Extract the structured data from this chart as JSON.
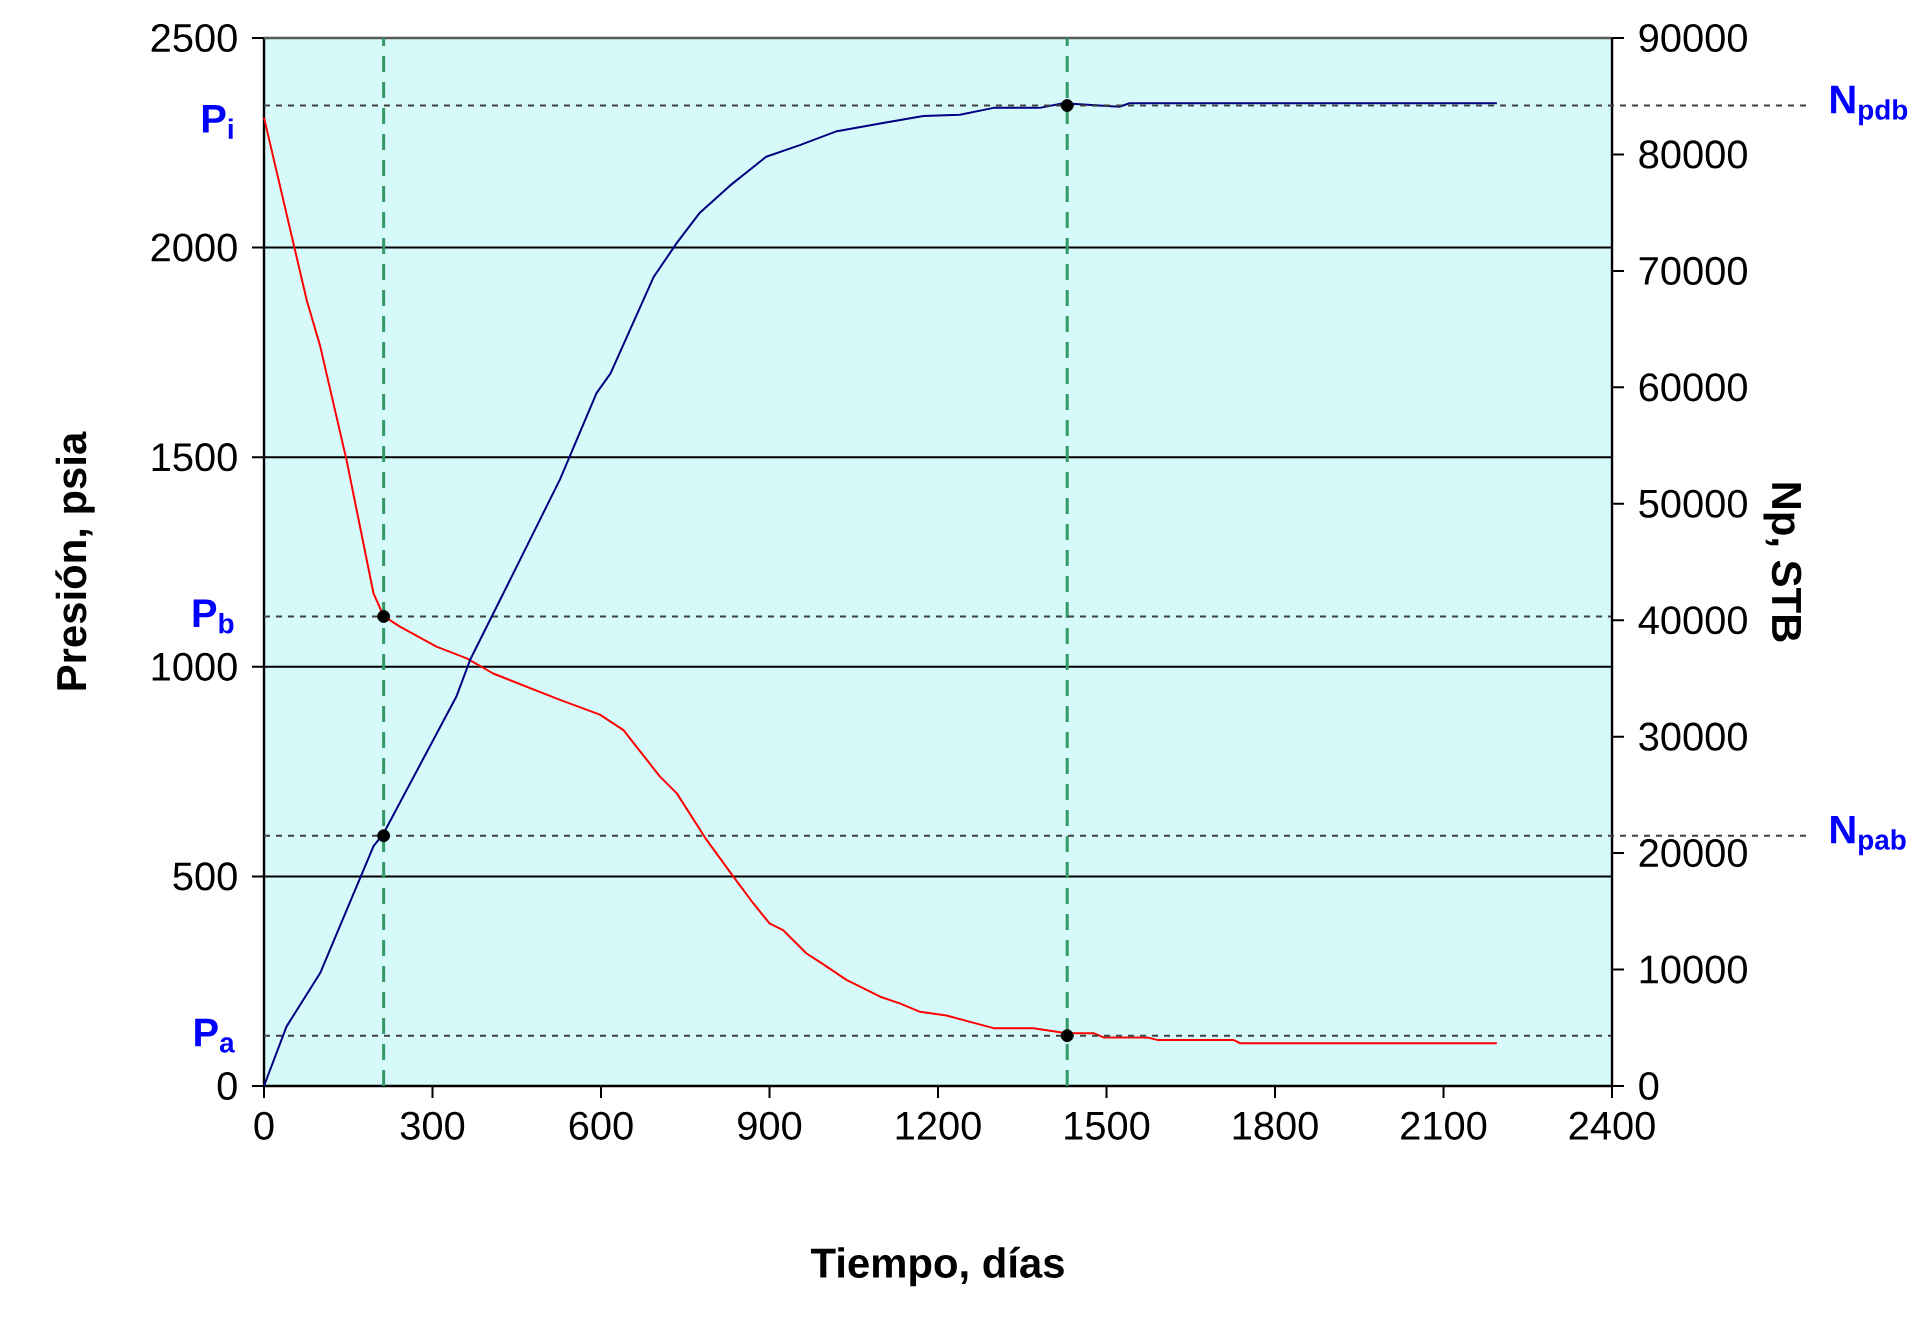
{
  "chart_data": {
    "type": "line",
    "xlabel": "Tiempo, días",
    "ylabel": "Presión, psia",
    "y2label": "Np, STB",
    "xlim": [
      0,
      2400
    ],
    "xticks": [
      0,
      300,
      600,
      900,
      1200,
      1500,
      1800,
      2100,
      2400
    ],
    "ylim": [
      0,
      2500
    ],
    "yticks": [
      0,
      500,
      1000,
      1500,
      2000,
      2500
    ],
    "y2lim": [
      0,
      90000
    ],
    "y2ticks": [
      0,
      10000,
      20000,
      30000,
      40000,
      50000,
      60000,
      70000,
      80000,
      90000
    ],
    "grid": "y",
    "series": [
      {
        "color": "#ff0000",
        "axis": "y",
        "x": [
          0,
          76,
          100,
          147,
          195,
          213,
          242,
          307,
          361,
          408,
          527,
          598,
          640,
          705,
          735,
          788,
          836,
          871,
          900,
          924,
          966,
          996,
          1037,
          1097,
          1132,
          1168,
          1215,
          1299,
          1370,
          1429,
          1477,
          1495,
          1572,
          1590,
          1726,
          1738,
          2195
        ],
        "values": [
          2310,
          1875,
          1765,
          1493,
          1175,
          1121,
          1096,
          1048,
          1020,
          984,
          921,
          886,
          849,
          738,
          698,
          587,
          499,
          436,
          388,
          372,
          316,
          290,
          253,
          213,
          197,
          177,
          168,
          138,
          138,
          126,
          126,
          116,
          116,
          110,
          110,
          102,
          102
        ]
      },
      {
        "color": "#000080",
        "axis": "y2",
        "x": [
          0,
          40,
          100,
          195,
          213,
          343,
          367,
          456,
          527,
          592,
          617,
          694,
          735,
          776,
          829,
          894,
          954,
          1020,
          1102,
          1174,
          1239,
          1299,
          1381,
          1423,
          1523,
          1541,
          2195
        ],
        "values": [
          0,
          5100,
          9700,
          20600,
          21700,
          33500,
          36600,
          45200,
          52100,
          59500,
          61200,
          69500,
          72400,
          75000,
          77300,
          79800,
          80800,
          82000,
          82700,
          83300,
          83400,
          84000,
          84000,
          84400,
          84100,
          84400,
          84400
        ]
      },
      {
        "type": "scatter",
        "color": "#000000",
        "axis": "y",
        "x": [
          213,
          1430
        ],
        "values": [
          1120,
          120
        ]
      },
      {
        "type": "scatter",
        "color": "#000000",
        "axis": "y2",
        "x": [
          213,
          1430
        ],
        "values": [
          21500,
          84200
        ]
      }
    ],
    "ref_lines": [
      {
        "axis": "x",
        "value": 213,
        "color": "#339966",
        "line_style": "dashed"
      },
      {
        "axis": "x",
        "value": 1430,
        "color": "#339966",
        "line_style": "dashed"
      },
      {
        "axis": "y",
        "value": 1120,
        "label": "P$_{b}$",
        "color": "#404040",
        "line_style": "dotted"
      },
      {
        "axis": "y",
        "value": 120,
        "label": "P$_{a}$",
        "color": "#404040",
        "line_style": "dotted"
      },
      {
        "axis": "y2",
        "value": 84200,
        "label": "N$_{pdb}$",
        "color": "#404040",
        "line_style": "dotted"
      },
      {
        "axis": "y2",
        "value": 21500,
        "label": "N$_{pab}$",
        "color": "#404040",
        "line_style": "dotted"
      }
    ],
    "annotations": [
      {
        "text": "P$_{i}$",
        "x": 0,
        "y": 2300
      }
    ]
  }
}
